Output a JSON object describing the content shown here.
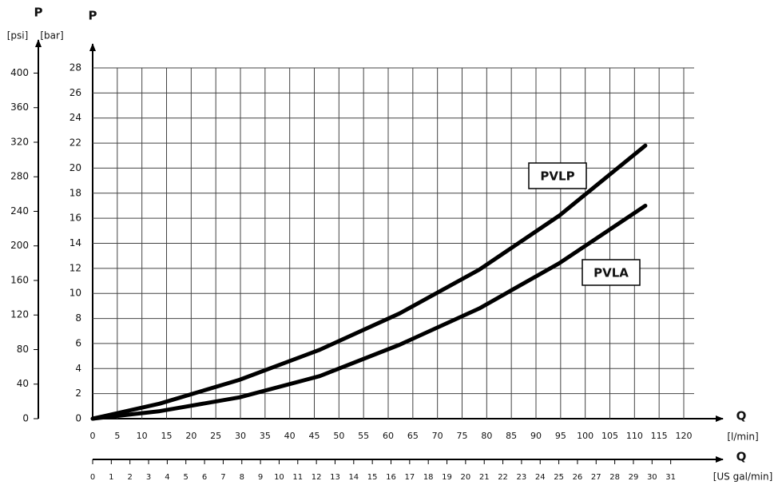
{
  "chart_data": {
    "type": "line",
    "y_label": "P",
    "y_unit": "[bar]",
    "y2_label": "P",
    "y2_unit": "[psi]",
    "x_label": "Q",
    "x_unit": "[l/min]",
    "x2_label": "Q",
    "x2_unit": "[US gal/min]",
    "x": [
      0,
      13.6,
      29.8,
      46.1,
      62.3,
      78.5,
      94.7,
      112.2
    ],
    "series": [
      {
        "name": "PVLP",
        "color": "#000000",
        "values": [
          0,
          1.2,
          3.1,
          5.5,
          8.4,
          11.9,
          16.2,
          21.8
        ]
      },
      {
        "name": "PVLA",
        "color": "#000000",
        "values": [
          0,
          0.6,
          1.7,
          3.4,
          5.9,
          8.8,
          12.4,
          17.0
        ]
      }
    ],
    "xlim": [
      0,
      120
    ],
    "xticks": [
      0,
      5,
      10,
      15,
      20,
      25,
      30,
      35,
      40,
      45,
      50,
      55,
      60,
      65,
      70,
      75,
      80,
      85,
      90,
      95,
      100,
      105,
      110,
      115,
      120
    ],
    "x2lim": [
      0,
      31.7
    ],
    "x2ticks": [
      0,
      1,
      2,
      3,
      4,
      5,
      6,
      7,
      8,
      9,
      10,
      11,
      12,
      13,
      14,
      15,
      16,
      17,
      18,
      19,
      20,
      21,
      22,
      23,
      24,
      25,
      26,
      27,
      28,
      29,
      30,
      31
    ],
    "ylim": [
      0,
      28
    ],
    "yticks": [
      0,
      2,
      4,
      6,
      8,
      10,
      12,
      14,
      16,
      18,
      20,
      22,
      24,
      26,
      28
    ],
    "y2lim": [
      0,
      406
    ],
    "y2ticks": [
      0,
      40,
      80,
      120,
      160,
      200,
      240,
      280,
      320,
      360,
      400
    ],
    "grid": true
  }
}
